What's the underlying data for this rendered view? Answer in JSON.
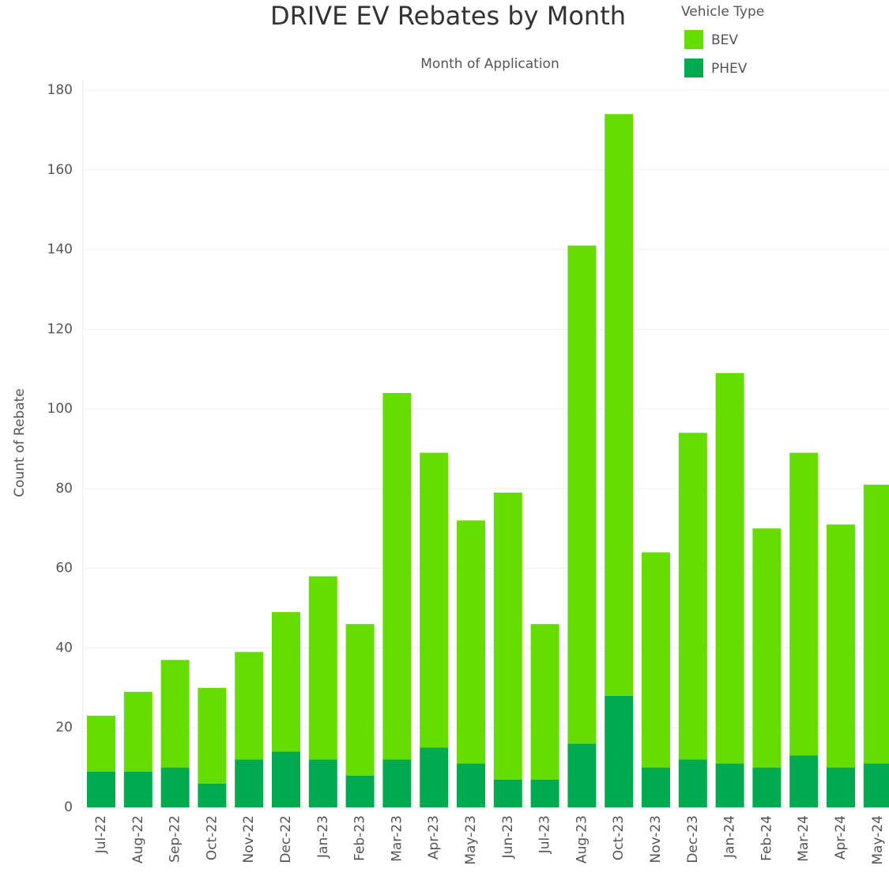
{
  "chart_data": {
    "type": "stacked_bar",
    "title": "DRIVE EV Rebates by Month",
    "subtitle": "Month of Application",
    "y_label": "Count of Rebate",
    "legend_title": "Vehicle Type",
    "categories": [
      "Jul-22",
      "Aug-22",
      "Sep-22",
      "Oct-22",
      "Nov-22",
      "Dec-22",
      "Jan-23",
      "Feb-23",
      "Mar-23",
      "Apr-23",
      "May-23",
      "Jun-23",
      "Jul-23",
      "Aug-23",
      "Oct-23",
      "Nov-23",
      "Dec-23",
      "Jan-24",
      "Feb-24",
      "Mar-24",
      "Apr-24",
      "May-24"
    ],
    "series": [
      {
        "name": "BEV",
        "color": "#66dd00",
        "values": [
          14,
          20,
          27,
          24,
          27,
          35,
          46,
          38,
          92,
          74,
          61,
          72,
          39,
          125,
          146,
          54,
          82,
          98,
          60,
          76,
          61,
          70
        ]
      },
      {
        "name": "PHEV",
        "color": "#00aa4f",
        "values": [
          9,
          9,
          10,
          6,
          12,
          14,
          12,
          8,
          12,
          15,
          11,
          7,
          7,
          16,
          28,
          10,
          12,
          11,
          10,
          13,
          10,
          11
        ]
      }
    ],
    "ylim": [
      0,
      180
    ],
    "yticks": [
      0,
      20,
      40,
      60,
      80,
      100,
      120,
      140,
      160,
      180
    ],
    "grid": true
  }
}
